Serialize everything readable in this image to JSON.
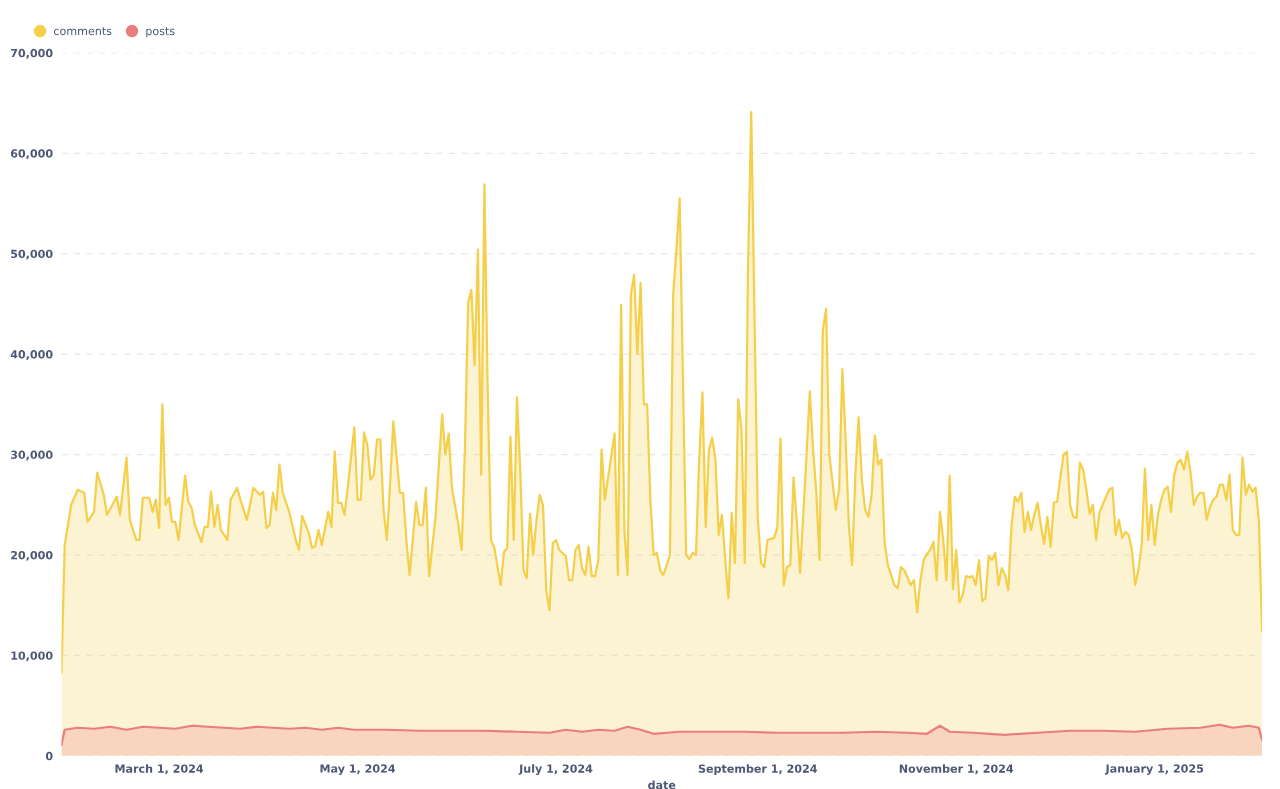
{
  "chart_data": {
    "type": "area",
    "xlabel": "date",
    "legend": "top left",
    "grid": "y",
    "marker": "none",
    "line_style": "solid",
    "xlim": [
      "2024-01-31",
      "2025-02-03"
    ],
    "xticks": [
      {
        "value": "2024-03-01",
        "label": "March 1, 2024"
      },
      {
        "value": "2024-05-01",
        "label": "May 1, 2024"
      },
      {
        "value": "2024-07-01",
        "label": "July 1, 2024"
      },
      {
        "value": "2024-09-01",
        "label": "September 1, 2024"
      },
      {
        "value": "2024-11-01",
        "label": "November 1, 2024"
      },
      {
        "value": "2025-01-01",
        "label": "January 1, 2025"
      }
    ],
    "ylim": [
      0,
      70000
    ],
    "yticks": [
      0,
      {
        "value": 10000,
        "label": "10,000"
      },
      {
        "value": 20000,
        "label": "20,000"
      },
      {
        "value": 30000,
        "label": "30,000"
      },
      {
        "value": 40000,
        "label": "40,000"
      },
      {
        "value": 50000,
        "label": "50,000"
      },
      {
        "value": 60000,
        "label": "60,000"
      },
      {
        "value": 70000,
        "label": "70,000"
      }
    ],
    "series": [
      {
        "name": "comments",
        "color": "#f5cf4a",
        "x": [
          "2024-01-31",
          "2024-02-01",
          "2024-02-03",
          "2024-02-05",
          "2024-02-07",
          "2024-02-08",
          "2024-02-10",
          "2024-02-11",
          "2024-02-13",
          "2024-02-14",
          "2024-02-17",
          "2024-02-18",
          "2024-02-20",
          "2024-02-21",
          "2024-02-23",
          "2024-02-24",
          "2024-02-25",
          "2024-02-27",
          "2024-02-28",
          "2024-02-29",
          "2024-03-01",
          "2024-03-02",
          "2024-03-03",
          "2024-03-04",
          "2024-03-05",
          "2024-03-06",
          "2024-03-07",
          "2024-03-09",
          "2024-03-10",
          "2024-03-11",
          "2024-03-12",
          "2024-03-14",
          "2024-03-15",
          "2024-03-16",
          "2024-03-17",
          "2024-03-18",
          "2024-03-19",
          "2024-03-20",
          "2024-03-22",
          "2024-03-23",
          "2024-03-25",
          "2024-03-26",
          "2024-03-28",
          "2024-03-30",
          "2024-04-01",
          "2024-04-02",
          "2024-04-03",
          "2024-04-04",
          "2024-04-05",
          "2024-04-06",
          "2024-04-07",
          "2024-04-08",
          "2024-04-10",
          "2024-04-12",
          "2024-04-13",
          "2024-04-14",
          "2024-04-16",
          "2024-04-17",
          "2024-04-18",
          "2024-04-19",
          "2024-04-20",
          "2024-04-22",
          "2024-04-23",
          "2024-04-24",
          "2024-04-25",
          "2024-04-26",
          "2024-04-27",
          "2024-04-28",
          "2024-04-30",
          "2024-05-01",
          "2024-05-02",
          "2024-05-03",
          "2024-05-04",
          "2024-05-05",
          "2024-05-06",
          "2024-05-07",
          "2024-05-08",
          "2024-05-09",
          "2024-05-10",
          "2024-05-11",
          "2024-05-12",
          "2024-05-14",
          "2024-05-15",
          "2024-05-16",
          "2024-05-17",
          "2024-05-19",
          "2024-05-20",
          "2024-05-21",
          "2024-05-22",
          "2024-05-23",
          "2024-05-25",
          "2024-05-27",
          "2024-05-28",
          "2024-05-29",
          "2024-05-30",
          "2024-06-01",
          "2024-06-02",
          "2024-06-03",
          "2024-06-04",
          "2024-06-05",
          "2024-06-06",
          "2024-06-07",
          "2024-06-08",
          "2024-06-09",
          "2024-06-10",
          "2024-06-11",
          "2024-06-12",
          "2024-06-14",
          "2024-06-15",
          "2024-06-16",
          "2024-06-17",
          "2024-06-18",
          "2024-06-19",
          "2024-06-20",
          "2024-06-21",
          "2024-06-22",
          "2024-06-23",
          "2024-06-24",
          "2024-06-25",
          "2024-06-26",
          "2024-06-27",
          "2024-06-28",
          "2024-06-29",
          "2024-06-30",
          "2024-07-01",
          "2024-07-02",
          "2024-07-04",
          "2024-07-05",
          "2024-07-06",
          "2024-07-07",
          "2024-07-08",
          "2024-07-09",
          "2024-07-10",
          "2024-07-11",
          "2024-07-12",
          "2024-07-13",
          "2024-07-14",
          "2024-07-15",
          "2024-07-16",
          "2024-07-17",
          "2024-07-19",
          "2024-07-20",
          "2024-07-21",
          "2024-07-22",
          "2024-07-23",
          "2024-07-24",
          "2024-07-25",
          "2024-07-26",
          "2024-07-27",
          "2024-07-28",
          "2024-07-29",
          "2024-07-30",
          "2024-07-31",
          "2024-08-01",
          "2024-08-02",
          "2024-08-03",
          "2024-08-05",
          "2024-08-06",
          "2024-08-07",
          "2024-08-08",
          "2024-08-10",
          "2024-08-11",
          "2024-08-12",
          "2024-08-13",
          "2024-08-14",
          "2024-08-15",
          "2024-08-16",
          "2024-08-17",
          "2024-08-18",
          "2024-08-19",
          "2024-08-20",
          "2024-08-21",
          "2024-08-22",
          "2024-08-23",
          "2024-08-24",
          "2024-08-25",
          "2024-08-26",
          "2024-08-27",
          "2024-08-28",
          "2024-08-29",
          "2024-08-30",
          "2024-09-01",
          "2024-09-02",
          "2024-09-03",
          "2024-09-04",
          "2024-09-06",
          "2024-09-07",
          "2024-09-08",
          "2024-09-09",
          "2024-09-10",
          "2024-09-11",
          "2024-09-12",
          "2024-09-13",
          "2024-09-14",
          "2024-09-16",
          "2024-09-17",
          "2024-09-18",
          "2024-09-19",
          "2024-09-20",
          "2024-09-21",
          "2024-09-22",
          "2024-09-23",
          "2024-09-24",
          "2024-09-25",
          "2024-09-26",
          "2024-09-27",
          "2024-09-28",
          "2024-09-29",
          "2024-09-30",
          "2024-10-01",
          "2024-10-02",
          "2024-10-03",
          "2024-10-04",
          "2024-10-05",
          "2024-10-06",
          "2024-10-07",
          "2024-10-08",
          "2024-10-09",
          "2024-10-10",
          "2024-10-11",
          "2024-10-12",
          "2024-10-13",
          "2024-10-14",
          "2024-10-15",
          "2024-10-16",
          "2024-10-17",
          "2024-10-18",
          "2024-10-19",
          "2024-10-20",
          "2024-10-21",
          "2024-10-22",
          "2024-10-23",
          "2024-10-24",
          "2024-10-25",
          "2024-10-26",
          "2024-10-27",
          "2024-10-28",
          "2024-10-29",
          "2024-10-30",
          "2024-10-31",
          "2024-11-01",
          "2024-11-02",
          "2024-11-03",
          "2024-11-04",
          "2024-11-05",
          "2024-11-06",
          "2024-11-07",
          "2024-11-08",
          "2024-11-09",
          "2024-11-10",
          "2024-11-11",
          "2024-11-12",
          "2024-11-13",
          "2024-11-14",
          "2024-11-15",
          "2024-11-16",
          "2024-11-17",
          "2024-11-18",
          "2024-11-19",
          "2024-11-20",
          "2024-11-21",
          "2024-11-22",
          "2024-11-23",
          "2024-11-24",
          "2024-11-25",
          "2024-11-26",
          "2024-11-27",
          "2024-11-28",
          "2024-11-29",
          "2024-11-30",
          "2024-12-01",
          "2024-12-02",
          "2024-12-03",
          "2024-12-04",
          "2024-12-05",
          "2024-12-06",
          "2024-12-07",
          "2024-12-08",
          "2024-12-09",
          "2024-12-10",
          "2024-12-11",
          "2024-12-12",
          "2024-12-13",
          "2024-12-14",
          "2024-12-15",
          "2024-12-16",
          "2024-12-18",
          "2024-12-19",
          "2024-12-20",
          "2024-12-21",
          "2024-12-22",
          "2024-12-23",
          "2024-12-24",
          "2024-12-25",
          "2024-12-26",
          "2024-12-27",
          "2024-12-28",
          "2024-12-29",
          "2024-12-30",
          "2024-12-31",
          "2025-01-01",
          "2025-01-02",
          "2025-01-03",
          "2025-01-04",
          "2025-01-05",
          "2025-01-06",
          "2025-01-07",
          "2025-01-08",
          "2025-01-09",
          "2025-01-10",
          "2025-01-11",
          "2025-01-12",
          "2025-01-13",
          "2025-01-14",
          "2025-01-15",
          "2025-01-16",
          "2025-01-17",
          "2025-01-18",
          "2025-01-19",
          "2025-01-20",
          "2025-01-21",
          "2025-01-22",
          "2025-01-23",
          "2025-01-24",
          "2025-01-25",
          "2025-01-26",
          "2025-01-27",
          "2025-01-28",
          "2025-01-29",
          "2025-01-30",
          "2025-01-31",
          "2025-02-01",
          "2025-02-02",
          "2025-02-03"
        ],
        "values": [
          8300,
          21000,
          25000,
          26500,
          26200,
          23300,
          24300,
          28200,
          26000,
          24000,
          25800,
          24000,
          29700,
          23500,
          21500,
          21500,
          25700,
          25700,
          24300,
          25500,
          22700,
          35000,
          25000,
          25700,
          23300,
          23300,
          21500,
          27900,
          25300,
          24700,
          23000,
          21300,
          22800,
          22800,
          26300,
          22800,
          25000,
          22500,
          21500,
          25500,
          26700,
          25500,
          23500,
          26700,
          26000,
          26300,
          22700,
          23000,
          26200,
          24500,
          29000,
          26200,
          24300,
          21500,
          20500,
          23900,
          22200,
          20700,
          20900,
          22500,
          21000,
          24300,
          22800,
          30300,
          25200,
          25200,
          24000,
          26700,
          32700,
          25500,
          25500,
          32200,
          31000,
          27500,
          28000,
          31500,
          31500,
          24500,
          21500,
          27000,
          33300,
          26200,
          26200,
          21500,
          18000,
          25300,
          23000,
          23000,
          26700,
          17900,
          23900,
          34000,
          30000,
          32100,
          26700,
          23000,
          20500,
          30500,
          45100,
          46400,
          38900,
          50400,
          28000,
          56900,
          36500,
          21500,
          20800,
          17000,
          20300,
          20700,
          31800,
          21500,
          35700,
          28500,
          18500,
          17700,
          24100,
          20000,
          23500,
          26000,
          25000,
          16500,
          14500,
          21200,
          21500,
          20500,
          19900,
          17500,
          17500,
          20500,
          21000,
          18700,
          18000,
          20800,
          17900,
          17900,
          19500,
          30500,
          25500,
          27700,
          32100,
          18000,
          44900,
          22500,
          18000,
          45900,
          47900,
          40000,
          47100,
          35000,
          35000,
          25500,
          20000,
          20200,
          18500,
          18000,
          20000,
          45900,
          50400,
          55500,
          20000,
          19600,
          20200,
          20000,
          29500,
          36200,
          22800,
          30500,
          31700,
          29500,
          22000,
          24000,
          19500,
          15700,
          24200,
          19200,
          35500,
          32500,
          19200,
          48400,
          64100,
          23700,
          19200,
          18800,
          21500,
          21700,
          22700,
          31600,
          17000,
          18800,
          19000,
          27700,
          23300,
          18200,
          30000,
          36300,
          30500,
          26200,
          19500,
          42400,
          44500,
          30000,
          27200,
          24500,
          26500,
          38500,
          31500,
          23000,
          19000,
          28000,
          33700,
          27500,
          24500,
          23800,
          26000,
          31900,
          29000,
          29500,
          21200,
          19000,
          18000,
          17000,
          16700,
          18800,
          18500,
          17800,
          17000,
          17500,
          14300,
          17500,
          19500,
          20100,
          20500,
          21300,
          17500,
          24300,
          21500,
          17500,
          27900,
          16600,
          20500,
          15300,
          16000,
          17900,
          17800,
          17900,
          17000,
          19500,
          15400,
          15700,
          19900,
          19500,
          20200,
          17000,
          18700,
          18000,
          16500,
          23000,
          25800,
          25300,
          26200,
          22300,
          24300,
          22500,
          24000,
          25200,
          23000,
          21100,
          23800,
          20800,
          25200,
          25300,
          27700,
          30000,
          30300,
          25000,
          23800,
          23700,
          29200,
          28500,
          26500,
          24100,
          25000,
          21500,
          24200,
          25000,
          26500,
          26700,
          22000,
          23500,
          21700,
          22300,
          22000,
          20500,
          17000,
          18500,
          21000,
          28600,
          21500,
          25000,
          21000,
          24000,
          25500,
          26500,
          26800,
          24300,
          28000,
          29200,
          29500,
          28500,
          30300,
          28300,
          25000,
          25800,
          26200,
          26200,
          23500,
          24800,
          25500,
          25800,
          27000,
          27000,
          25500,
          28000,
          22500,
          22000,
          22000,
          29700,
          26000,
          27000,
          26300,
          26700,
          23500,
          12400
        ]
      },
      {
        "name": "posts",
        "color": "#ea7d7d",
        "x": [
          "2024-01-31",
          "2024-02-01",
          "2024-02-05",
          "2024-02-10",
          "2024-02-15",
          "2024-02-20",
          "2024-02-25",
          "2024-03-01",
          "2024-03-06",
          "2024-03-11",
          "2024-03-16",
          "2024-03-21",
          "2024-03-26",
          "2024-03-31",
          "2024-04-05",
          "2024-04-10",
          "2024-04-15",
          "2024-04-20",
          "2024-04-25",
          "2024-04-30",
          "2024-05-10",
          "2024-05-20",
          "2024-05-30",
          "2024-06-09",
          "2024-06-19",
          "2024-06-29",
          "2024-07-04",
          "2024-07-09",
          "2024-07-14",
          "2024-07-19",
          "2024-07-23",
          "2024-07-27",
          "2024-07-31",
          "2024-08-08",
          "2024-08-18",
          "2024-08-28",
          "2024-09-07",
          "2024-09-17",
          "2024-09-27",
          "2024-10-07",
          "2024-10-17",
          "2024-10-23",
          "2024-10-27",
          "2024-10-30",
          "2024-11-06",
          "2024-11-16",
          "2024-11-26",
          "2024-12-06",
          "2024-12-16",
          "2024-12-26",
          "2025-01-05",
          "2025-01-15",
          "2025-01-21",
          "2025-01-25",
          "2025-01-30",
          "2025-02-02",
          "2025-02-03"
        ],
        "values": [
          1100,
          2600,
          2800,
          2700,
          2900,
          2600,
          2900,
          2800,
          2700,
          3000,
          2900,
          2800,
          2700,
          2900,
          2800,
          2700,
          2800,
          2600,
          2800,
          2600,
          2600,
          2500,
          2500,
          2500,
          2400,
          2300,
          2600,
          2400,
          2600,
          2500,
          2900,
          2600,
          2200,
          2400,
          2400,
          2400,
          2300,
          2300,
          2300,
          2400,
          2300,
          2200,
          3000,
          2400,
          2300,
          2100,
          2300,
          2500,
          2500,
          2400,
          2700,
          2800,
          3100,
          2800,
          3000,
          2800,
          1600
        ]
      }
    ]
  }
}
